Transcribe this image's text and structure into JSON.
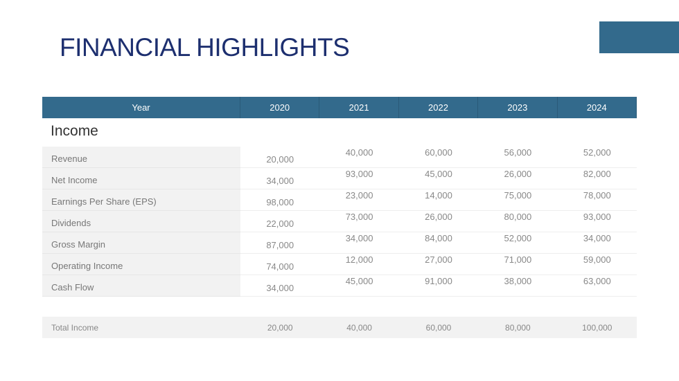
{
  "header": {
    "title": "FINANCIAL HIGHLIGHTS"
  },
  "table": {
    "columns": [
      "Year",
      "2020",
      "2021",
      "2022",
      "2023",
      "2024"
    ],
    "section": "Income",
    "rows": [
      [
        "Revenue",
        "20,000",
        "40,000",
        "60,000",
        "56,000",
        "52,000"
      ],
      [
        "Net Income",
        "34,000",
        "93,000",
        "45,000",
        "26,000",
        "82,000"
      ],
      [
        "Earnings Per Share (EPS)",
        "98,000",
        "23,000",
        "14,000",
        "75,000",
        "78,000"
      ],
      [
        "Dividends",
        "22,000",
        "73,000",
        "26,000",
        "80,000",
        "93,000"
      ],
      [
        "Gross Margin",
        "87,000",
        "34,000",
        "84,000",
        "52,000",
        "34,000"
      ],
      [
        "Operating Income",
        "74,000",
        "12,000",
        "27,000",
        "71,000",
        "59,000"
      ],
      [
        "Cash Flow",
        "34,000",
        "45,000",
        "91,000",
        "38,000",
        "63,000"
      ]
    ],
    "total": [
      "Total Income",
      "20,000",
      "40,000",
      "60,000",
      "80,000",
      "100,000"
    ]
  }
}
